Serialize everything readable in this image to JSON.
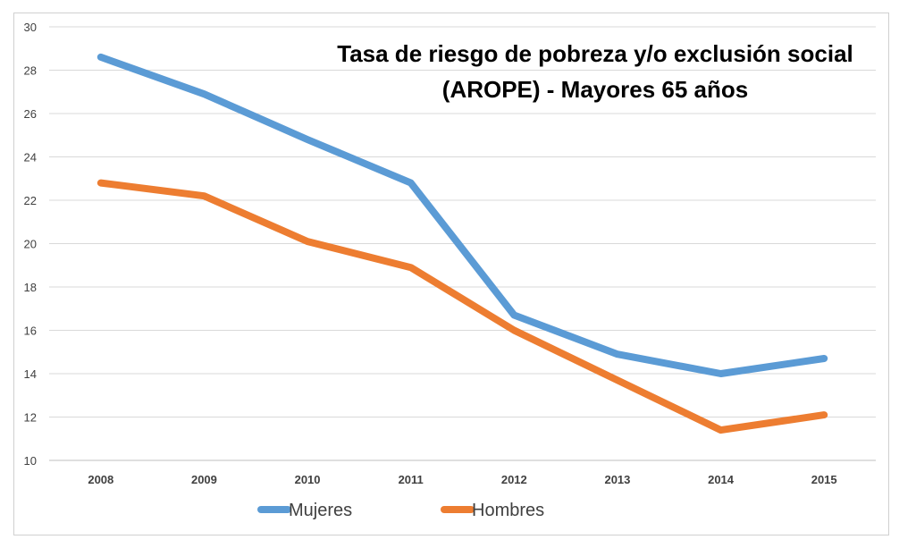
{
  "chart_data": {
    "type": "line",
    "title": "Tasa de riesgo de pobreza y/o exclusión social",
    "subtitle": "(AROPE) - Mayores 65 años",
    "xlabel": "",
    "ylabel": "",
    "categories": [
      "2008",
      "2009",
      "2010",
      "2011",
      "2012",
      "2013",
      "2014",
      "2015"
    ],
    "ylim": [
      10,
      30
    ],
    "yticks": [
      10,
      12,
      14,
      16,
      18,
      20,
      22,
      24,
      26,
      28,
      30
    ],
    "grid": true,
    "legend_position": "bottom-left",
    "series": [
      {
        "name": "Mujeres",
        "color": "#5B9BD5",
        "values": [
          28.6,
          26.9,
          24.8,
          22.8,
          16.7,
          14.9,
          14.0,
          14.7
        ]
      },
      {
        "name": "Hombres",
        "color": "#ED7D31",
        "values": [
          22.8,
          22.2,
          20.1,
          18.9,
          16.0,
          13.7,
          11.4,
          12.1
        ]
      }
    ]
  }
}
